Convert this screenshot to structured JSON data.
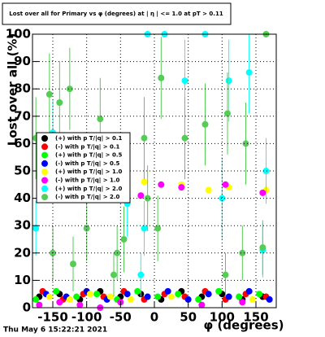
{
  "chart_data": {
    "type": "scatter",
    "title": "Lost over all for Primary vs φ (degrees) at | η | <= 1.0 at pT > 0.11",
    "x_label": "φ (degrees)",
    "y_label": "Lost over all (%)",
    "footer": "Thu May  6 15:22:21 2021",
    "xlim": [
      -180,
      180
    ],
    "ylim": [
      0,
      100
    ],
    "xticks": [
      -150,
      -100,
      -50,
      0,
      50,
      100,
      150
    ],
    "yticks": [
      0,
      10,
      20,
      30,
      40,
      50,
      60,
      70,
      80,
      90,
      100
    ],
    "grid": true,
    "series": [
      {
        "name": "(+) with p T/|q| > 0.1",
        "color": "#000000",
        "x": [
          -170,
          -140,
          -110,
          -80,
          -50,
          -20,
          10,
          40,
          70,
          100,
          130,
          160
        ],
        "values": [
          4,
          5,
          3,
          6,
          4,
          5,
          3,
          6,
          4,
          5,
          3,
          4
        ]
      },
      {
        "name": "(-) with p T/|q| > 0.1",
        "color": "#ff0000",
        "x": [
          -165,
          -135,
          -105,
          -75,
          -45,
          -15,
          15,
          45,
          75,
          105,
          135,
          165
        ],
        "values": [
          6,
          3,
          5,
          4,
          6,
          3,
          5,
          4,
          6,
          3,
          5,
          4
        ]
      },
      {
        "name": "(+) with p T/|q| > 0.5",
        "color": "#00ff00",
        "x": [
          -175,
          -145,
          -115,
          -85,
          -55,
          -25,
          5,
          35,
          65,
          95,
          125,
          155
        ],
        "values": [
          3,
          6,
          4,
          5,
          3,
          6,
          4,
          5,
          3,
          6,
          4,
          5
        ]
      },
      {
        "name": "(-) with p T/|q| > 0.5",
        "color": "#0000ff",
        "x": [
          -160,
          -130,
          -100,
          -70,
          -40,
          -10,
          20,
          50,
          80,
          110,
          140,
          170
        ],
        "values": [
          5,
          4,
          6,
          3,
          5,
          4,
          6,
          3,
          5,
          4,
          6,
          3
        ]
      },
      {
        "name": "(+) with p T/|q| > 1.0",
        "color": "#ffff00",
        "x": [
          -155,
          -125,
          -95,
          -65,
          -35,
          -15,
          25,
          40,
          80,
          110,
          145,
          165
        ],
        "values": [
          4,
          3,
          5,
          4,
          3,
          46,
          4,
          45,
          43,
          44,
          3,
          43
        ]
      },
      {
        "name": "(-) with p T/|q| > 1.0",
        "color": "#ff00ff",
        "x": [
          -170,
          -140,
          -110,
          -80,
          -50,
          -20,
          10,
          40,
          70,
          105,
          130,
          160
        ],
        "values": [
          1,
          2,
          1,
          0,
          2,
          41,
          45,
          44,
          1,
          45,
          2,
          42
        ]
      },
      {
        "name": "(+) with p T/|q| > 2.0",
        "color": "#00ffff",
        "x": [
          -175,
          -150,
          -40,
          -20,
          -15,
          -10,
          15,
          45,
          75,
          100,
          110,
          140,
          160,
          165
        ],
        "values": [
          29,
          64,
          38,
          12,
          29,
          100,
          100,
          83,
          100,
          40,
          83,
          86,
          21,
          50
        ],
        "errors": [
          10,
          12,
          12,
          8,
          10,
          0,
          0,
          15,
          0,
          15,
          15,
          15,
          10,
          12
        ]
      },
      {
        "name": "(-) with p T/|q| > 2.0",
        "color": "#55cc55",
        "x": [
          -175,
          -155,
          -150,
          -140,
          -125,
          -120,
          -100,
          -80,
          -60,
          -55,
          -45,
          -15,
          -10,
          5,
          10,
          45,
          75,
          105,
          108,
          130,
          135,
          160,
          165
        ],
        "values": [
          62,
          78,
          20,
          75,
          80,
          16,
          29,
          69,
          12,
          20,
          25,
          62,
          40,
          29,
          84,
          62,
          67,
          12,
          71,
          20,
          60,
          22,
          100
        ],
        "errors": [
          15,
          15,
          10,
          15,
          15,
          10,
          12,
          15,
          8,
          10,
          12,
          15,
          12,
          12,
          15,
          15,
          15,
          8,
          15,
          10,
          15,
          10,
          0
        ]
      }
    ]
  }
}
